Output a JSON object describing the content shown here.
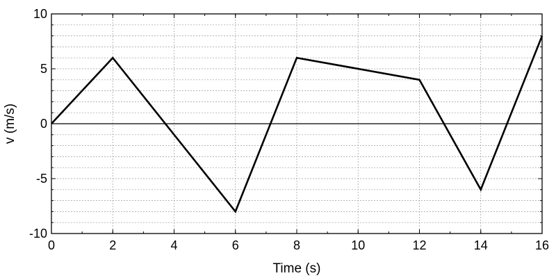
{
  "chart_data": {
    "type": "line",
    "title": "",
    "xlabel": "Time (s)",
    "ylabel": "v (m/s)",
    "xlim": [
      0,
      16
    ],
    "ylim": [
      -10,
      10
    ],
    "x_ticks": [
      0,
      2,
      4,
      6,
      8,
      10,
      12,
      14,
      16
    ],
    "y_ticks": [
      -10,
      -5,
      0,
      5,
      10
    ],
    "y_minor_step": 1,
    "x_minor_step": 1,
    "grid": true,
    "zero_line": true,
    "series": [
      {
        "color": "#000000",
        "points": [
          {
            "x": 0,
            "y": 0
          },
          {
            "x": 2,
            "y": 6
          },
          {
            "x": 6,
            "y": -8
          },
          {
            "x": 8,
            "y": 6
          },
          {
            "x": 12,
            "y": 4
          },
          {
            "x": 14,
            "y": -6
          },
          {
            "x": 16,
            "y": 8
          }
        ]
      }
    ]
  }
}
